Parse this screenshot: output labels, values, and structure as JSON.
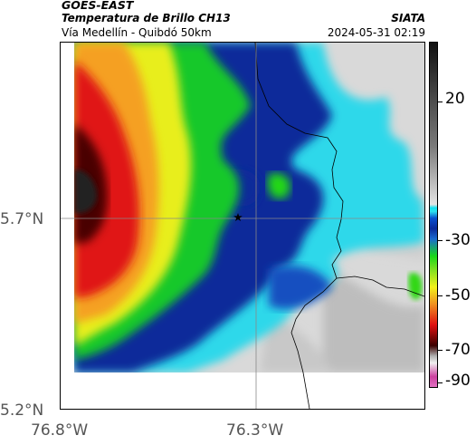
{
  "header": {
    "satellite": "GOES-EAST",
    "product": "Temperatura de Brillo CH13",
    "region": "Vía Medellín - Quibdó 50km",
    "agency": "SIATA",
    "datetime": "2024-05-31 02:19"
  },
  "axes": {
    "y_ticks": [
      {
        "label": "5.7°N",
        "value": 5.7
      },
      {
        "label": "5.2°N",
        "value": 5.2
      }
    ],
    "x_ticks": [
      {
        "label": "76.8°W",
        "value": -76.8
      },
      {
        "label": "76.3°W",
        "value": -76.3
      }
    ]
  },
  "colorbar": {
    "ticks": [
      {
        "label": "20",
        "value": 20
      },
      {
        "label": "-30",
        "value": -30
      },
      {
        "label": "-50",
        "value": -50
      },
      {
        "label": "-70",
        "value": -70
      },
      {
        "label": "-90",
        "value": -90
      }
    ],
    "colors": {
      "warm_top": "#111111",
      "warm_mid": "#7a7a7a",
      "warm_low": "#e4e4e4",
      "cyan": "#2fe4ee",
      "blue": "#0a2a9a",
      "green": "#18d818",
      "yellow": "#f2f21a",
      "red": "#e01010",
      "dark_red": "#3a0000",
      "pink": "#cc40a0"
    }
  },
  "map": {
    "marker_icon": "star-icon",
    "background_no_data": "#ffffff"
  }
}
